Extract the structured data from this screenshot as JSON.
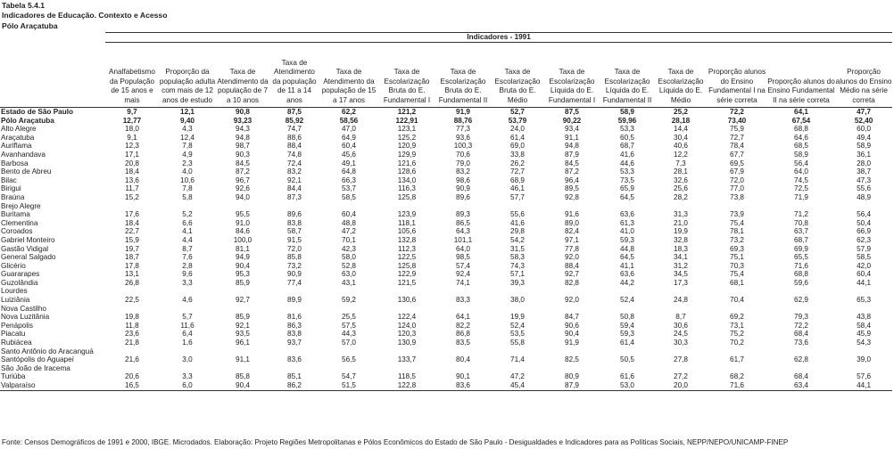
{
  "title_line1": "Tabela 5.4.1",
  "title_line2": "Indicadores de Educação. Contexto e Acesso",
  "title_line3": "Pólo Araçatuba",
  "group_header": "Indicadores - 1991",
  "columns": [
    "Analfabetismo da População de 15 anos e mais",
    "Proporção da população adulta com mais de 12 anos de estudo",
    "Taxa de Atendimento da população de 7 a 10 anos",
    "Taxa de Atendimento da população de 11 a 14 anos",
    "Taxa de Atendimento da população de 15 a 17 anos",
    "Taxa de Escolarização Bruta do E. Fundamental I",
    "Taxa de Escolarização Bruta do E. Fundamental II",
    "Taxa de Escolarização Bruta do E. Médio",
    "Taxa de Escolarização Líquida do E. Fundamental I",
    "Taxa de Escolarização Líquida do E. Fundamental II",
    "Taxa de Escolarização Líquida do E. Médio",
    "Proporção alunos do Ensino Fundamental I na série correta",
    "Proporção alunos do Ensino Fundamental II na série correta",
    "Proporção alunos do Ensino Médio na série correta"
  ],
  "rows": [
    {
      "name": "Estado de São Paulo",
      "bold": true,
      "v": [
        "9,7",
        "12,1",
        "90,8",
        "87,5",
        "62,2",
        "121,2",
        "91,9",
        "52,7",
        "87,5",
        "58,9",
        "25,2",
        "72,2",
        "64,1",
        "47,7"
      ]
    },
    {
      "name": "Pólo Araçatuba",
      "bold": true,
      "v": [
        "12,77",
        "9,40",
        "93,23",
        "85,92",
        "58,56",
        "122,91",
        "88,76",
        "53,79",
        "90,22",
        "59,96",
        "28,18",
        "73,40",
        "67,54",
        "52,40"
      ]
    },
    {
      "name": "Alto Alegre",
      "v": [
        "18,0",
        "4,3",
        "94,3",
        "74,7",
        "47,0",
        "123,1",
        "77,3",
        "24,0",
        "93,4",
        "53,3",
        "14,4",
        "75,9",
        "68,8",
        "60,0"
      ]
    },
    {
      "name": "Araçatuba",
      "v": [
        "9,1",
        "12,4",
        "94,8",
        "88,6",
        "64,9",
        "125,2",
        "93,6",
        "61,4",
        "91,1",
        "60,5",
        "30,4",
        "72,7",
        "64,6",
        "49,4"
      ]
    },
    {
      "name": "Auriflama",
      "v": [
        "12,3",
        "7,8",
        "98,7",
        "88,4",
        "60,4",
        "120,9",
        "100,3",
        "69,0",
        "94,8",
        "68,7",
        "40,6",
        "78,4",
        "68,5",
        "58,9"
      ]
    },
    {
      "name": "Avanhandava",
      "v": [
        "17,1",
        "4,9",
        "90,3",
        "74,8",
        "45,6",
        "129,9",
        "70,6",
        "33,8",
        "87,9",
        "41,6",
        "12,2",
        "67,7",
        "58,9",
        "36,1"
      ]
    },
    {
      "name": "Barbosa",
      "v": [
        "20,8",
        "2,3",
        "84,5",
        "72,4",
        "49,1",
        "121,6",
        "79,0",
        "26,2",
        "84,5",
        "44,6",
        "7,3",
        "69,5",
        "56,4",
        "28,0"
      ]
    },
    {
      "name": "Bento de Abreu",
      "v": [
        "18,4",
        "4,0",
        "87,2",
        "83,2",
        "64,8",
        "128,6",
        "83,2",
        "72,7",
        "87,2",
        "53,3",
        "28,1",
        "67,9",
        "64,0",
        "38,7"
      ]
    },
    {
      "name": "Bilac",
      "v": [
        "13,6",
        "10,6",
        "96,7",
        "92,1",
        "66,3",
        "134,0",
        "98,6",
        "68,9",
        "96,4",
        "73,5",
        "32,6",
        "72,0",
        "74,5",
        "47,3"
      ]
    },
    {
      "name": "Birigui",
      "v": [
        "11,7",
        "7,8",
        "92,6",
        "84,4",
        "53,7",
        "116,3",
        "90,9",
        "46,1",
        "89,5",
        "65,9",
        "25,6",
        "77,0",
        "72,5",
        "55,6"
      ]
    },
    {
      "name": "Braúna",
      "v": [
        "15,2",
        "5,8",
        "94,0",
        "87,3",
        "58,5",
        "125,8",
        "89,6",
        "57,7",
        "92,8",
        "64,5",
        "28,2",
        "73,8",
        "71,9",
        "48,9"
      ]
    },
    {
      "name": "Brejo Alegre",
      "v": [
        "",
        "",
        "",
        "",
        "",
        "",
        "",
        "",
        "",
        "",
        "",
        "",
        "",
        ""
      ]
    },
    {
      "name": "Buritama",
      "v": [
        "17,6",
        "5,2",
        "95,5",
        "89,6",
        "60,4",
        "123,9",
        "89,3",
        "55,6",
        "91,6",
        "63,6",
        "31,3",
        "73,9",
        "71,2",
        "56,4"
      ]
    },
    {
      "name": "Clementina",
      "v": [
        "18,4",
        "6,6",
        "91,0",
        "83,8",
        "48,8",
        "118,1",
        "86,5",
        "41,6",
        "89,0",
        "61,3",
        "21,0",
        "75,4",
        "70,8",
        "50,4"
      ]
    },
    {
      "name": "Coroados",
      "v": [
        "22,7",
        "4,1",
        "84,6",
        "58,7",
        "47,2",
        "105,6",
        "64,3",
        "29,8",
        "82,4",
        "41,0",
        "19,9",
        "78,1",
        "63,7",
        "66,9"
      ]
    },
    {
      "name": "Gabriel Monteiro",
      "v": [
        "15,9",
        "4,4",
        "100,0",
        "91,5",
        "70,1",
        "132,8",
        "101,1",
        "54,2",
        "97,1",
        "59,3",
        "32,8",
        "73,2",
        "68,7",
        "62,3"
      ]
    },
    {
      "name": "Gastão Vidigal",
      "v": [
        "19,7",
        "8,7",
        "81,1",
        "72,0",
        "42,3",
        "112,3",
        "64,0",
        "31,5",
        "77,8",
        "44,8",
        "18,3",
        "69,3",
        "69,9",
        "57,9"
      ]
    },
    {
      "name": "General Salgado",
      "v": [
        "18,7",
        "7,6",
        "94,9",
        "85,8",
        "58,0",
        "122,5",
        "98,5",
        "58,3",
        "92,0",
        "64,5",
        "34,1",
        "75,1",
        "65,5",
        "58,5"
      ]
    },
    {
      "name": "Glicério",
      "v": [
        "17,8",
        "2,8",
        "90,4",
        "73,2",
        "52,8",
        "125,8",
        "57,4",
        "74,3",
        "88,4",
        "41,1",
        "31,2",
        "70,3",
        "71,6",
        "42,0"
      ]
    },
    {
      "name": "Guararapes",
      "v": [
        "13,1",
        "9,6",
        "95,3",
        "90,9",
        "63,0",
        "122,9",
        "92,4",
        "57,1",
        "92,7",
        "63,6",
        "34,5",
        "75,4",
        "68,8",
        "60,4"
      ]
    },
    {
      "name": "Guzolândia",
      "v": [
        "26,8",
        "3,3",
        "85,9",
        "77,4",
        "43,1",
        "121,5",
        "74,1",
        "39,3",
        "82,8",
        "44,2",
        "17,3",
        "68,1",
        "59,6",
        "44,1"
      ]
    },
    {
      "name": "Lourdes",
      "v": [
        "",
        "",
        "",
        "",
        "",
        "",
        "",
        "",
        "",
        "",
        "",
        "",
        "",
        ""
      ]
    },
    {
      "name": "Luiziânia",
      "v": [
        "22,5",
        "4,6",
        "92,7",
        "89,9",
        "59,2",
        "130,6",
        "83,3",
        "38,0",
        "92,0",
        "52,4",
        "24,8",
        "70,4",
        "62,9",
        "65,3"
      ]
    },
    {
      "name": "Nova Castilho",
      "v": [
        "",
        "",
        "",
        "",
        "",
        "",
        "",
        "",
        "",
        "",
        "",
        "",
        "",
        ""
      ]
    },
    {
      "name": "Nova Luzitânia",
      "v": [
        "19,8",
        "5,7",
        "85,9",
        "81,6",
        "25,5",
        "122,4",
        "64,1",
        "19,9",
        "84,7",
        "50,8",
        "8,7",
        "69,2",
        "79,3",
        "43,8"
      ]
    },
    {
      "name": "Penápolis",
      "v": [
        "11,8",
        "11,6",
        "92,1",
        "86,3",
        "57,5",
        "124,0",
        "82,2",
        "52,4",
        "90,6",
        "59,4",
        "30,6",
        "73,1",
        "72,2",
        "58,4"
      ]
    },
    {
      "name": "Piacatu",
      "v": [
        "23,6",
        "6,4",
        "93,5",
        "83,8",
        "44,3",
        "120,3",
        "86,8",
        "53,5",
        "90,4",
        "59,3",
        "24,5",
        "75,2",
        "68,4",
        "45,9"
      ]
    },
    {
      "name": "Rubiácea",
      "v": [
        "21,8",
        "1,6",
        "96,1",
        "93,7",
        "57,0",
        "130,9",
        "83,5",
        "55,8",
        "91,9",
        "61,4",
        "30,3",
        "70,2",
        "73,6",
        "54,3"
      ]
    },
    {
      "name": "Santo Antônio do Aracanguá",
      "v": [
        "",
        "",
        "",
        "",
        "",
        "",
        "",
        "",
        "",
        "",
        "",
        "",
        "",
        ""
      ]
    },
    {
      "name": "Santópolis do Aguapeí",
      "v": [
        "21,6",
        "3,0",
        "91,1",
        "83,6",
        "56,5",
        "133,7",
        "80,4",
        "71,4",
        "82,5",
        "50,5",
        "27,8",
        "61,7",
        "62,8",
        "39,0"
      ]
    },
    {
      "name": "São João de Iracema",
      "v": [
        "",
        "",
        "",
        "",
        "",
        "",
        "",
        "",
        "",
        "",
        "",
        "",
        "",
        ""
      ]
    },
    {
      "name": "Turiúba",
      "v": [
        "20,6",
        "3,3",
        "85,8",
        "85,1",
        "54,7",
        "118,5",
        "90,1",
        "47,2",
        "80,9",
        "61,6",
        "27,2",
        "68,2",
        "68,4",
        "57,6"
      ]
    },
    {
      "name": "Valparaíso",
      "v": [
        "16,5",
        "6,0",
        "90,4",
        "86,2",
        "51,5",
        "122,8",
        "83,6",
        "45,4",
        "87,9",
        "53,0",
        "20,0",
        "71,6",
        "63,4",
        "44,1"
      ]
    }
  ],
  "source": "Fonte: Censos Demográficos de 1991 e 2000, IBGE. Microdados. Elaboração: Projeto Regiões Metropolitanas e Pólos Econômicos do Estado de São Paulo - Desigualdades e Indicadores para as Políticas Sociais, NEPP/NEPO/UNICAMP-FINEP"
}
